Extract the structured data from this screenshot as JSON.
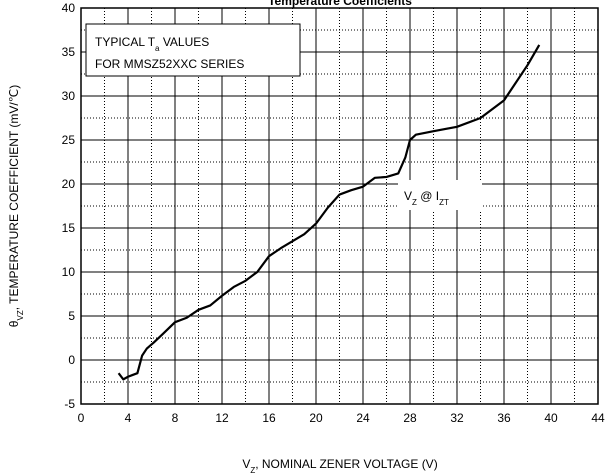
{
  "chart_data": {
    "type": "line",
    "title": "Temperature Coefficients",
    "x_label": {
      "parts": [
        "V",
        "Z",
        ", NOMINAL ZENER VOLTAGE (V)"
      ]
    },
    "y_label": {
      "parts": [
        "θ",
        "VZ",
        ", TEMPERATURE COEFFICIENT (mV/℃)"
      ]
    },
    "annotations": [
      {
        "parts": [
          "TYPICAL T",
          "a",
          " VALUES"
        ]
      },
      {
        "parts": [
          "FOR MMSZ52XXC SERIES"
        ]
      },
      {
        "parts": [
          "V",
          "Z",
          " @ I",
          "ZT"
        ]
      }
    ],
    "x": [
      3.2,
      3.6,
      4.0,
      4.4,
      4.8,
      5.2,
      5.6,
      6.2,
      7.0,
      8.0,
      9.0,
      10,
      11,
      12,
      13,
      14,
      15,
      16,
      17,
      18,
      19,
      20,
      21,
      22,
      23,
      24,
      25,
      26,
      27,
      27.6,
      28,
      28.5,
      30,
      32,
      34,
      36,
      38,
      39
    ],
    "series": [
      {
        "color": "#000000",
        "values": [
          -1.5,
          -2.2,
          -1.9,
          -1.7,
          -1.5,
          0.5,
          1.3,
          2.0,
          3.0,
          4.3,
          4.8,
          5.7,
          6.2,
          7.3,
          8.3,
          9.0,
          10,
          11.8,
          12.7,
          13.5,
          14.3,
          15.5,
          17.3,
          18.8,
          19.3,
          19.7,
          20.7,
          20.8,
          21.2,
          23,
          25,
          25.6,
          26,
          26.5,
          27.5,
          29.5,
          33.5,
          35.8
        ]
      }
    ],
    "xlim": [
      0,
      44
    ],
    "xticks": [
      0,
      4,
      8,
      12,
      16,
      20,
      24,
      28,
      32,
      36,
      40,
      44
    ],
    "ylim": [
      -5,
      40
    ],
    "yticks": [
      -5,
      0,
      5,
      10,
      15,
      20,
      25,
      30,
      35,
      40
    ],
    "minor_xticks": [
      2,
      6,
      10,
      14,
      18,
      22,
      26,
      30,
      34,
      38,
      42
    ],
    "minor_yticks": [
      -2.5,
      2.5,
      7.5,
      12.5,
      17.5,
      22.5,
      27.5,
      32.5,
      37.5
    ],
    "grid": true
  }
}
